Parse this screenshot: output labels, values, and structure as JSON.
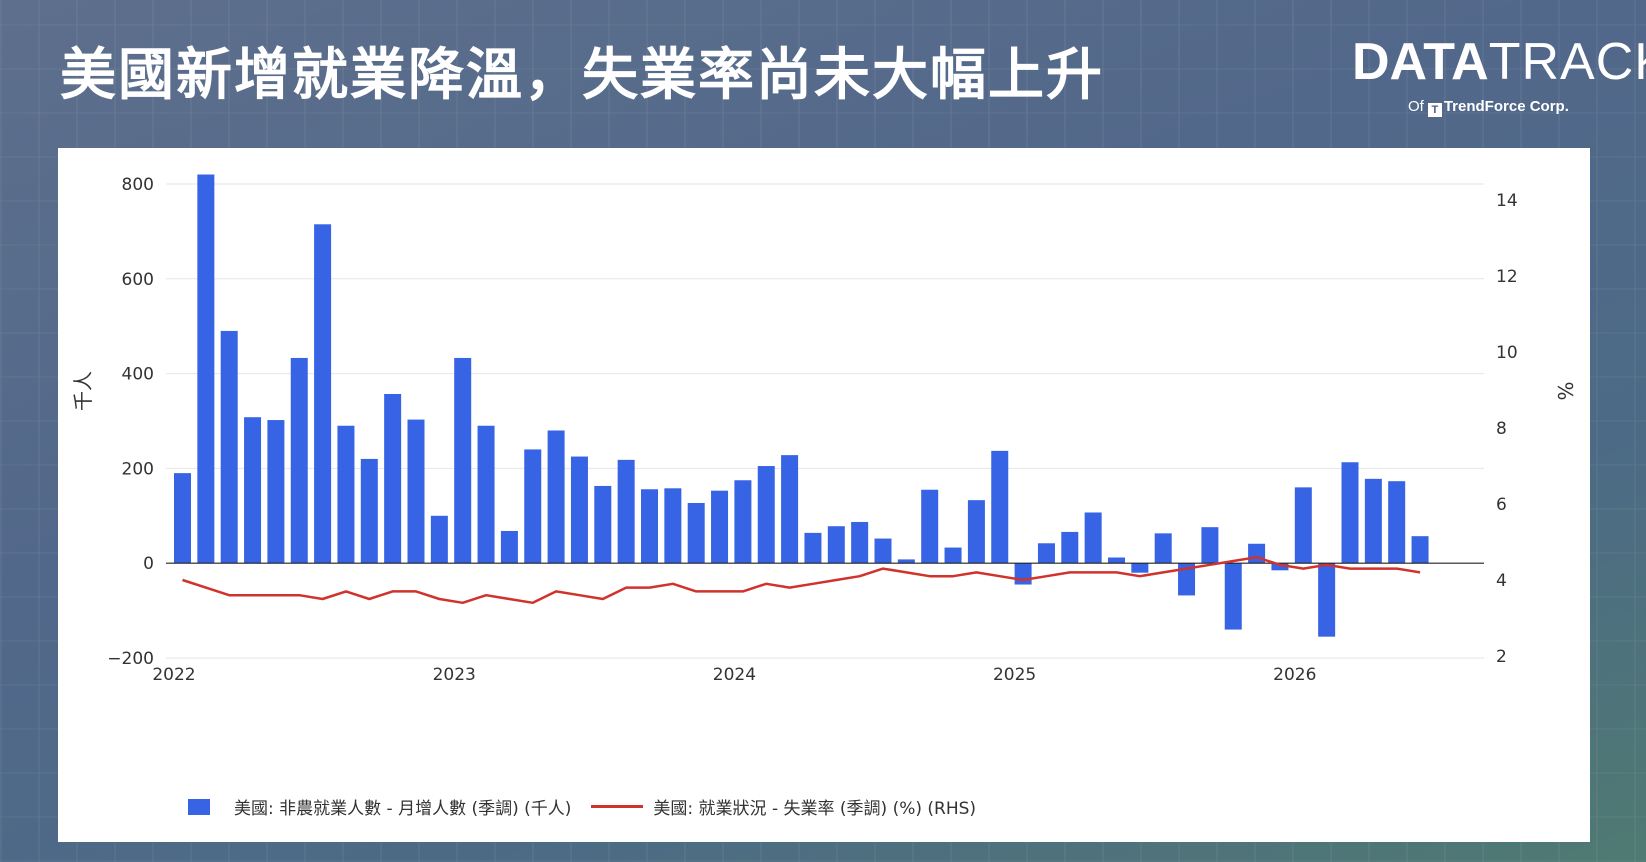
{
  "title": "美國新增就業降溫，失業率尚未大幅上升",
  "logo": {
    "main_bold": "DATA",
    "main_light": "TRACK",
    "of": "Of",
    "company": "TrendForce Corp.",
    "mark": "T"
  },
  "colors": {
    "bar": "#3763e5",
    "line": "#d0322c",
    "grid": "#e6e6e6"
  },
  "chart_data": {
    "type": "bar",
    "x_tick_labels": [
      "2022",
      "2023",
      "2024",
      "2025",
      "2026"
    ],
    "ylabel_left": "千人",
    "ylabel_right": "%",
    "ylim_left": [
      -200,
      800
    ],
    "yticks_left": [
      -200,
      0,
      200,
      400,
      600,
      800
    ],
    "ylim_right": [
      2,
      14
    ],
    "yticks_right": [
      2,
      4,
      6,
      8,
      10,
      12,
      14
    ],
    "grid": true,
    "legend_position": "bottom",
    "series": [
      {
        "name": "美國: 非農就業人數 - 月增人數 (季調) (千人)",
        "type": "bar",
        "axis": "left",
        "values": [
          190,
          820,
          490,
          308,
          302,
          433,
          715,
          290,
          220,
          357,
          303,
          100,
          433,
          290,
          68,
          240,
          280,
          225,
          163,
          218,
          156,
          158,
          127,
          153,
          175,
          205,
          228,
          64,
          78,
          87,
          52,
          8,
          155,
          33,
          133,
          237,
          -45,
          42,
          66,
          107,
          12,
          -20,
          63,
          -68,
          76,
          -140,
          41,
          -15,
          160,
          -155,
          213,
          178,
          173,
          57
        ]
      },
      {
        "name": "美國: 就業狀況 - 失業率 (季調) (%) (RHS)",
        "type": "line",
        "axis": "right",
        "values": [
          4.0,
          3.8,
          3.6,
          3.6,
          3.6,
          3.6,
          3.5,
          3.7,
          3.5,
          3.7,
          3.7,
          3.5,
          3.4,
          3.6,
          3.5,
          3.4,
          3.7,
          3.6,
          3.5,
          3.8,
          3.8,
          3.9,
          3.7,
          3.7,
          3.7,
          3.9,
          3.8,
          3.9,
          4.0,
          4.1,
          4.3,
          4.2,
          4.1,
          4.1,
          4.2,
          4.1,
          4.0,
          4.1,
          4.2,
          4.2,
          4.2,
          4.1,
          4.2,
          4.3,
          4.4,
          4.5,
          4.6,
          4.4,
          4.3,
          4.4,
          4.3,
          4.3,
          4.3,
          4.2
        ]
      }
    ]
  }
}
